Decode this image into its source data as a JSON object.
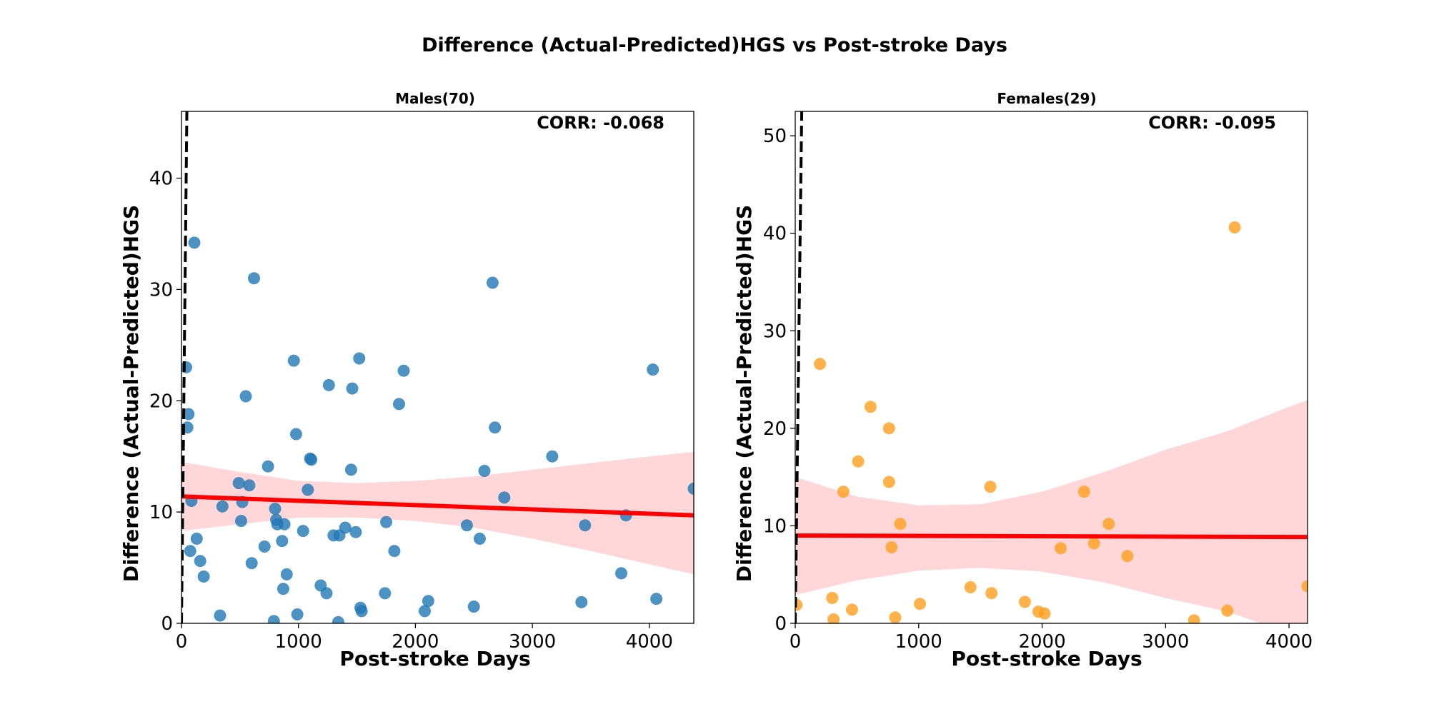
{
  "figure": {
    "title": "Difference (Actual-Predicted)HGS vs Post-stroke Days"
  },
  "colors": {
    "males_points": "#1f77b4",
    "females_points": "#ff9f1c",
    "regression_line": "#ff0000",
    "confidence_band": "#ffb6b9",
    "identity_line": "#000000"
  },
  "chart_data": [
    {
      "type": "scatter",
      "title": "Males(70)",
      "xlabel": "Post-stroke Days",
      "ylabel": "Difference (Actual-Predicted)HGS",
      "annotation": "CORR: -0.068",
      "xlim": [
        0,
        4380
      ],
      "ylim": [
        0,
        46
      ],
      "xticks": [
        0,
        1000,
        2000,
        3000,
        4000
      ],
      "yticks": [
        0,
        10,
        20,
        30,
        40
      ],
      "grid": false,
      "identity_line": true,
      "series": [
        {
          "color": "#1f77b4",
          "x": [
            40,
            60,
            50,
            75,
            85,
            110,
            130,
            160,
            190,
            330,
            350,
            490,
            510,
            520,
            550,
            580,
            600,
            620,
            710,
            740,
            790,
            800,
            810,
            820,
            860,
            870,
            880,
            900,
            960,
            980,
            990,
            1040,
            1080,
            1100,
            1110,
            1190,
            1240,
            1260,
            1300,
            1340,
            1350,
            1400,
            1450,
            1460,
            1490,
            1520,
            1530,
            1540,
            1740,
            1750,
            1820,
            1860,
            1900,
            2080,
            2110,
            2440,
            2500,
            2550,
            2590,
            2660,
            2680,
            2760,
            3170,
            3420,
            3450,
            3760,
            3800,
            4030,
            4060,
            4380
          ],
          "y": [
            23,
            18.8,
            17.6,
            6.5,
            11.0,
            34.2,
            7.6,
            5.6,
            4.2,
            0.7,
            10.5,
            12.6,
            9.2,
            10.9,
            20.4,
            12.4,
            5.4,
            31.0,
            6.9,
            14.1,
            0.2,
            10.3,
            9.3,
            8.9,
            7.4,
            3.1,
            8.9,
            4.4,
            23.6,
            17.0,
            0.8,
            8.3,
            12.0,
            14.8,
            14.7,
            3.4,
            2.7,
            21.4,
            7.9,
            0.1,
            7.9,
            8.6,
            13.8,
            21.1,
            8.2,
            23.8,
            1.4,
            1.1,
            2.7,
            9.1,
            6.5,
            19.7,
            22.7,
            1.1,
            2.0,
            8.8,
            1.5,
            7.6,
            13.7,
            30.6,
            17.6,
            11.3,
            15.0,
            1.9,
            8.8,
            4.5,
            9.7,
            22.8,
            2.2,
            12.1
          ]
        }
      ],
      "regression": {
        "x": [
          0,
          4380
        ],
        "y": [
          11.4,
          9.7
        ],
        "band_x": [
          0,
          500,
          1000,
          1500,
          2000,
          2500,
          3000,
          3500,
          4000,
          4380
        ],
        "band_upper": [
          14.5,
          13.6,
          12.8,
          12.6,
          12.8,
          13.2,
          13.8,
          14.4,
          15.0,
          15.4
        ],
        "band_lower": [
          8.3,
          8.9,
          9.5,
          9.5,
          9.2,
          8.6,
          7.6,
          6.5,
          5.3,
          4.4
        ]
      }
    },
    {
      "type": "scatter",
      "title": "Females(29)",
      "xlabel": "Post-stroke Days",
      "ylabel": "Difference (Actual-Predicted)HGS",
      "annotation": "CORR: -0.095",
      "xlim": [
        0,
        4150
      ],
      "ylim": [
        0,
        52.5
      ],
      "xticks": [
        0,
        1000,
        2000,
        3000,
        4000
      ],
      "yticks": [
        0,
        10,
        20,
        30,
        40,
        50
      ],
      "grid": false,
      "identity_line": true,
      "series": [
        {
          "color": "#ff9f1c",
          "x": [
            10,
            200,
            300,
            310,
            390,
            460,
            510,
            610,
            760,
            760,
            780,
            810,
            850,
            1010,
            1420,
            1580,
            1590,
            1860,
            1970,
            2020,
            2150,
            2340,
            2420,
            2540,
            2690,
            3230,
            3500,
            3560,
            4150
          ],
          "y": [
            1.9,
            26.6,
            2.6,
            0.4,
            13.5,
            1.4,
            16.6,
            22.2,
            20.0,
            14.5,
            7.8,
            0.6,
            10.2,
            2.0,
            3.7,
            14.0,
            3.1,
            2.2,
            1.2,
            1.0,
            7.7,
            13.5,
            8.2,
            10.2,
            6.9,
            0.3,
            1.3,
            40.6,
            3.8
          ]
        }
      ],
      "regression": {
        "x": [
          0,
          4150
        ],
        "y": [
          9.0,
          8.85
        ],
        "band_x": [
          0,
          500,
          1000,
          1500,
          2000,
          2500,
          3000,
          3500,
          4000,
          4150
        ],
        "band_upper": [
          15.0,
          13.0,
          12.1,
          12.2,
          13.5,
          15.5,
          17.8,
          19.7,
          22.2,
          22.9
        ],
        "band_lower": [
          2.9,
          4.4,
          5.4,
          5.7,
          5.3,
          4.2,
          2.6,
          1.2,
          -1.0,
          -2.0
        ]
      }
    }
  ]
}
